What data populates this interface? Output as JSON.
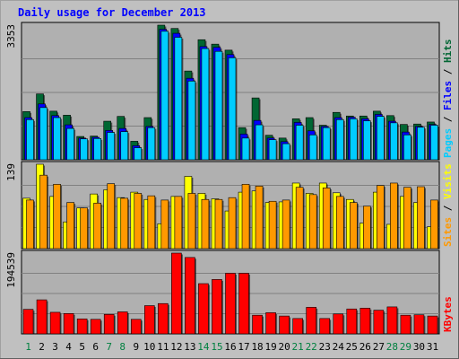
{
  "colors": {
    "background": "#c0c0c0",
    "panel": "#b0b0b0",
    "grid": "#808080",
    "title": "#0000ff",
    "hits": "#006633",
    "files": "#0000ff",
    "pages": "#00ccff",
    "visits": "#ffff00",
    "sites": "#ff9900",
    "kbytes": "#ff0000",
    "weekday_label": "#000000",
    "weekend_label": "#008040"
  },
  "chart_data": {
    "type": "bar",
    "title": "Daily usage for December 2013",
    "x": {
      "categories": [
        "1",
        "2",
        "3",
        "4",
        "5",
        "6",
        "7",
        "8",
        "9",
        "10",
        "11",
        "12",
        "13",
        "14",
        "15",
        "16",
        "17",
        "18",
        "19",
        "20",
        "21",
        "22",
        "23",
        "24",
        "25",
        "26",
        "27",
        "28",
        "29",
        "30",
        "31"
      ],
      "weekend_days": [
        "1",
        "7",
        "8",
        "14",
        "15",
        "21",
        "22",
        "28",
        "29"
      ]
    },
    "panels": [
      {
        "name": "hits-files-pages",
        "y_max_label": "3353",
        "ylim": [
          0,
          3353
        ],
        "legend": [
          {
            "label": "Pages",
            "color": "#00ccff"
          },
          {
            "label": "Files",
            "color": "#0000ff"
          },
          {
            "label": "Hits",
            "color": "#006633"
          }
        ],
        "series": [
          {
            "name": "Hits",
            "values": [
              1200,
              1640,
              1210,
              1110,
              580,
              590,
              960,
              1080,
              460,
              1050,
              3353,
              3270,
              2210,
              2990,
              2880,
              2730,
              800,
              1540,
              610,
              540,
              1020,
              1050,
              860,
              1180,
              1090,
              1090,
              1210,
              1100,
              880,
              890,
              940
            ]
          },
          {
            "name": "Files",
            "values": [
              1050,
              1390,
              1100,
              870,
              540,
              560,
              730,
              780,
              350,
              830,
              3250,
              3150,
              2030,
              2820,
              2800,
              2620,
              640,
              980,
              540,
              450,
              930,
              720,
              830,
              1050,
              1060,
              1020,
              1130,
              960,
              690,
              830,
              880
            ]
          },
          {
            "name": "Pages",
            "values": [
              1000,
              1300,
              1050,
              780,
              520,
              530,
              680,
              700,
              300,
              800,
              3200,
              3050,
              1960,
              2770,
              2700,
              2540,
              540,
              870,
              500,
              400,
              860,
              620,
              800,
              1000,
              1020,
              970,
              1080,
              920,
              620,
              810,
              860
            ]
          }
        ]
      },
      {
        "name": "visits-sites",
        "y_max_label": "139",
        "ylim": [
          0,
          139
        ],
        "legend": [
          {
            "label": "Sites",
            "color": "#ff9900"
          },
          {
            "label": "Visits",
            "color": "#ffff00"
          }
        ],
        "series": [
          {
            "name": "Visits",
            "values": [
              83,
              139,
              86,
              44,
              67,
              90,
              97,
              84,
              93,
              81,
              41,
              86,
              119,
              91,
              82,
              62,
              93,
              95,
              76,
              77,
              108,
              91,
              108,
              92,
              81,
              42,
              93,
              40,
              86,
              76,
              36
            ]
          },
          {
            "name": "Sites",
            "values": [
              80,
              121,
              106,
              76,
              67,
              75,
              107,
              83,
              91,
              87,
              80,
              86,
              91,
              81,
              81,
              84,
              106,
              103,
              78,
              80,
              101,
              89,
              100,
              86,
              76,
              70,
              104,
              108,
              101,
              102,
              80
            ]
          }
        ]
      },
      {
        "name": "kbytes",
        "y_max_label": "194539",
        "ylim": [
          0,
          194539
        ],
        "legend": [
          {
            "label": "KBytes",
            "color": "#ff0000"
          }
        ],
        "series": [
          {
            "name": "KBytes",
            "values": [
              59000,
              82000,
              52000,
              49000,
              36000,
              35000,
              47000,
              53000,
              35000,
              68000,
              73000,
              194539,
              184000,
              121000,
              131000,
              146000,
              146000,
              45000,
              51000,
              43000,
              37000,
              64000,
              37000,
              48000,
              60000,
              62000,
              57000,
              65000,
              45000,
              46000,
              43000
            ]
          }
        ]
      }
    ]
  }
}
